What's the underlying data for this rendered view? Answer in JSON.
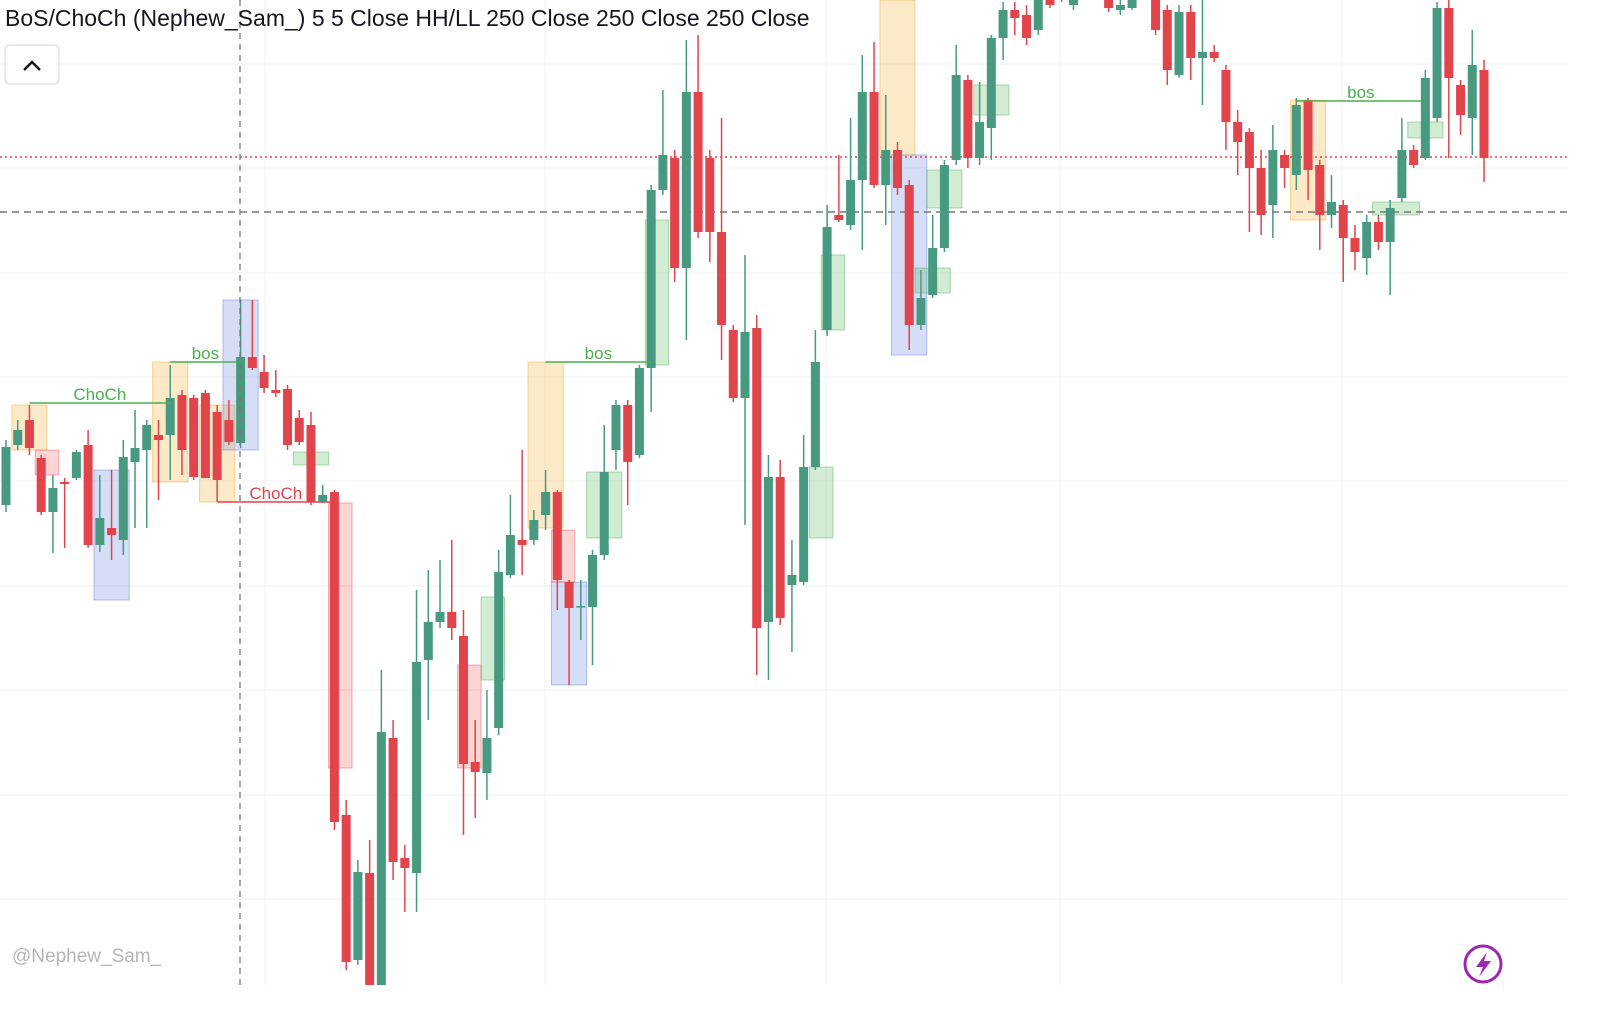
{
  "chart_data": {
    "type": "candlestick",
    "title": "BoS/ChoCh (Nephew_Sam_) 5 5 Close HH/LL 250 Close 250 Close 250 Close",
    "watermark": "@Nephew_Sam_",
    "up_color": "#479a80",
    "down_color": "#e2444b",
    "ylim": [
      15,
      1000
    ],
    "open": [
      495,
      555,
      580,
      542,
      488,
      518,
      522,
      555,
      455,
      472,
      460,
      538,
      550,
      565,
      565,
      605,
      602,
      607,
      588,
      580,
      557,
      643,
      628,
      610,
      611,
      582,
      575,
      498,
      508,
      185,
      40,
      127,
      15,
      262,
      142,
      127,
      340,
      378,
      388,
      364,
      238,
      227,
      272,
      425,
      460,
      460,
      485,
      508,
      418,
      393,
      393,
      445,
      550,
      595,
      545,
      632,
      810,
      842,
      732,
      908,
      842,
      768,
      670,
      602,
      672,
      378,
      523,
      415,
      418,
      533,
      670,
      785,
      775,
      820,
      908,
      815,
      850,
      815,
      675,
      705,
      752,
      840,
      920,
      842,
      872,
      962,
      990,
      985,
      970,
      1000,
      1005,
      995,
      1020,
      1040,
      1005,
      990,
      992,
      1015,
      1000,
      990,
      925,
      988,
      942,
      948,
      930,
      878,
      868,
      832,
      795,
      845,
      825,
      900,
      835,
      785,
      795,
      762,
      742,
      778,
      758,
      802,
      850,
      842,
      882,
      992,
      915,
      882,
      930
    ],
    "high": [
      560,
      580,
      595,
      545,
      525,
      522,
      550,
      570,
      525,
      530,
      560,
      590,
      580,
      580,
      635,
      610,
      605,
      610,
      595,
      600,
      700,
      700,
      645,
      630,
      615,
      590,
      588,
      515,
      510,
      200,
      140,
      160,
      330,
      280,
      155,
      410,
      430,
      440,
      460,
      390,
      280,
      310,
      450,
      505,
      550,
      490,
      530,
      510,
      420,
      420,
      450,
      575,
      600,
      600,
      635,
      815,
      910,
      850,
      960,
      965,
      850,
      882,
      675,
      745,
      685,
      545,
      540,
      460,
      565,
      670,
      795,
      845,
      882,
      945,
      958,
      905,
      858,
      820,
      730,
      785,
      840,
      955,
      925,
      918,
      965,
      998,
      998,
      995,
      1000,
      1010,
      1030,
      1030,
      1050,
      1060,
      1010,
      1000,
      1015,
      1025,
      1005,
      995,
      995,
      995,
      1000,
      955,
      935,
      890,
      872,
      850,
      875,
      850,
      902,
      902,
      840,
      825,
      800,
      775,
      785,
      785,
      800,
      882,
      855,
      930,
      998,
      1000,
      920,
      970,
      940
    ],
    "low": [
      488,
      550,
      545,
      485,
      447,
      452,
      520,
      452,
      448,
      440,
      445,
      472,
      472,
      500,
      520,
      525,
      520,
      522,
      498,
      555,
      552,
      630,
      607,
      603,
      550,
      555,
      495,
      497,
      170,
      30,
      35,
      15,
      15,
      120,
      88,
      88,
      280,
      372,
      360,
      165,
      182,
      200,
      265,
      422,
      425,
      455,
      470,
      390,
      315,
      360,
      335,
      440,
      530,
      495,
      542,
      588,
      805,
      718,
      660,
      762,
      738,
      640,
      598,
      475,
      325,
      320,
      375,
      348,
      415,
      530,
      664,
      778,
      770,
      750,
      812,
      775,
      805,
      650,
      670,
      702,
      748,
      835,
      832,
      835,
      840,
      940,
      965,
      955,
      965,
      992,
      998,
      990,
      1010,
      1015,
      988,
      985,
      990,
      1000,
      965,
      915,
      922,
      920,
      895,
      938,
      850,
      825,
      768,
      765,
      762,
      812,
      810,
      800,
      750,
      772,
      718,
      730,
      725,
      750,
      705,
      798,
      832,
      840,
      878,
      842,
      865,
      845,
      818
    ],
    "close": [
      553,
      570,
      552,
      488,
      512,
      516,
      548,
      455,
      482,
      465,
      543,
      552,
      575,
      560,
      602,
      550,
      523,
      522,
      520,
      558,
      643,
      632,
      612,
      607,
      555,
      558,
      498,
      505,
      178,
      38,
      128,
      15,
      268,
      138,
      132,
      338,
      378,
      388,
      372,
      236,
      228,
      262,
      428,
      465,
      455,
      480,
      508,
      420,
      392,
      394,
      445,
      528,
      595,
      538,
      632,
      810,
      845,
      732,
      908,
      768,
      768,
      675,
      602,
      668,
      372,
      523,
      382,
      425,
      533,
      638,
      773,
      780,
      820,
      908,
      815,
      850,
      812,
      675,
      702,
      752,
      835,
      925,
      842,
      878,
      962,
      990,
      982,
      962,
      1000,
      995,
      1020,
      1020,
      1040,
      1020,
      992,
      995,
      1010,
      1005,
      970,
      930,
      988,
      942,
      948,
      942,
      878,
      858,
      832,
      785,
      850,
      832,
      895,
      830,
      785,
      798,
      762,
      748,
      778,
      758,
      792,
      850,
      835,
      922,
      992,
      922,
      885,
      935,
      842
    ],
    "zones": [
      {
        "from": 1,
        "to": 3,
        "top": 595,
        "bottom": 550,
        "color": "#f5a623"
      },
      {
        "from": 3,
        "to": 4,
        "top": 550,
        "bottom": 525,
        "color": "#ef5350"
      },
      {
        "from": 8,
        "to": 10,
        "top": 530,
        "bottom": 400,
        "color": "#5b7be0"
      },
      {
        "from": 13,
        "to": 15,
        "top": 638,
        "bottom": 518,
        "color": "#f5a623"
      },
      {
        "from": 17,
        "to": 19,
        "top": 595,
        "bottom": 498,
        "color": "#f5a623"
      },
      {
        "from": 19,
        "to": 21,
        "top": 700,
        "bottom": 550,
        "color": "#5b7be0"
      },
      {
        "from": 25,
        "to": 27,
        "top": 548,
        "bottom": 535,
        "color": "#4caf50"
      },
      {
        "from": 28,
        "to": 29,
        "top": 497,
        "bottom": 232,
        "color": "#ef5350"
      },
      {
        "from": 39,
        "to": 40,
        "top": 335,
        "bottom": 232,
        "color": "#ef5350"
      },
      {
        "from": 41,
        "to": 42,
        "top": 403,
        "bottom": 320,
        "color": "#4caf50"
      },
      {
        "from": 45,
        "to": 47,
        "top": 638,
        "bottom": 472,
        "color": "#f5a623"
      },
      {
        "from": 47,
        "to": 49,
        "top": 418,
        "bottom": 315,
        "color": "#5b7be0"
      },
      {
        "from": 47,
        "to": 48,
        "top": 470,
        "bottom": 418,
        "color": "#ef5350"
      },
      {
        "from": 50,
        "to": 52,
        "top": 528,
        "bottom": 462,
        "color": "#4caf50"
      },
      {
        "from": 55,
        "to": 56,
        "top": 780,
        "bottom": 635,
        "color": "#4caf50"
      },
      {
        "from": 69,
        "to": 70,
        "top": 533,
        "bottom": 462,
        "color": "#4caf50"
      },
      {
        "from": 70,
        "to": 71,
        "top": 745,
        "bottom": 670,
        "color": "#4caf50"
      },
      {
        "from": 75,
        "to": 77,
        "top": 1000,
        "bottom": 845,
        "color": "#f5a623"
      },
      {
        "from": 76,
        "to": 78,
        "top": 845,
        "bottom": 645,
        "color": "#5b7be0"
      },
      {
        "from": 78,
        "to": 80,
        "top": 732,
        "bottom": 707,
        "color": "#4caf50"
      },
      {
        "from": 79,
        "to": 81,
        "top": 830,
        "bottom": 792,
        "color": "#4caf50"
      },
      {
        "from": 83,
        "to": 85,
        "top": 915,
        "bottom": 885,
        "color": "#4caf50"
      },
      {
        "from": 110,
        "to": 112,
        "top": 900,
        "bottom": 780,
        "color": "#f5a623"
      },
      {
        "from": 117,
        "to": 120,
        "top": 798,
        "bottom": 785,
        "color": "#4caf50"
      },
      {
        "from": 120,
        "to": 122,
        "top": 878,
        "bottom": 862,
        "color": "#4caf50"
      }
    ],
    "structure": [
      {
        "label": "ChoCh",
        "value": 597,
        "from": 2,
        "to": 14,
        "color": "#4caf50"
      },
      {
        "label": "bos",
        "value": 638,
        "from": 14,
        "to": 20,
        "color": "#4caf50"
      },
      {
        "label": "ChoCh",
        "value": 498,
        "from": 18,
        "to": 28,
        "color": "#e2444b"
      },
      {
        "label": "bos",
        "value": 638,
        "from": 46,
        "to": 55,
        "color": "#4caf50"
      },
      {
        "label": "bos",
        "value": 899,
        "from": 110,
        "to": 121,
        "color": "#4caf50"
      }
    ],
    "hlines": [
      {
        "value": 843,
        "color": "#e2444b",
        "style": "dotted"
      },
      {
        "value": 788,
        "color": "#777777",
        "style": "dashed"
      }
    ]
  }
}
